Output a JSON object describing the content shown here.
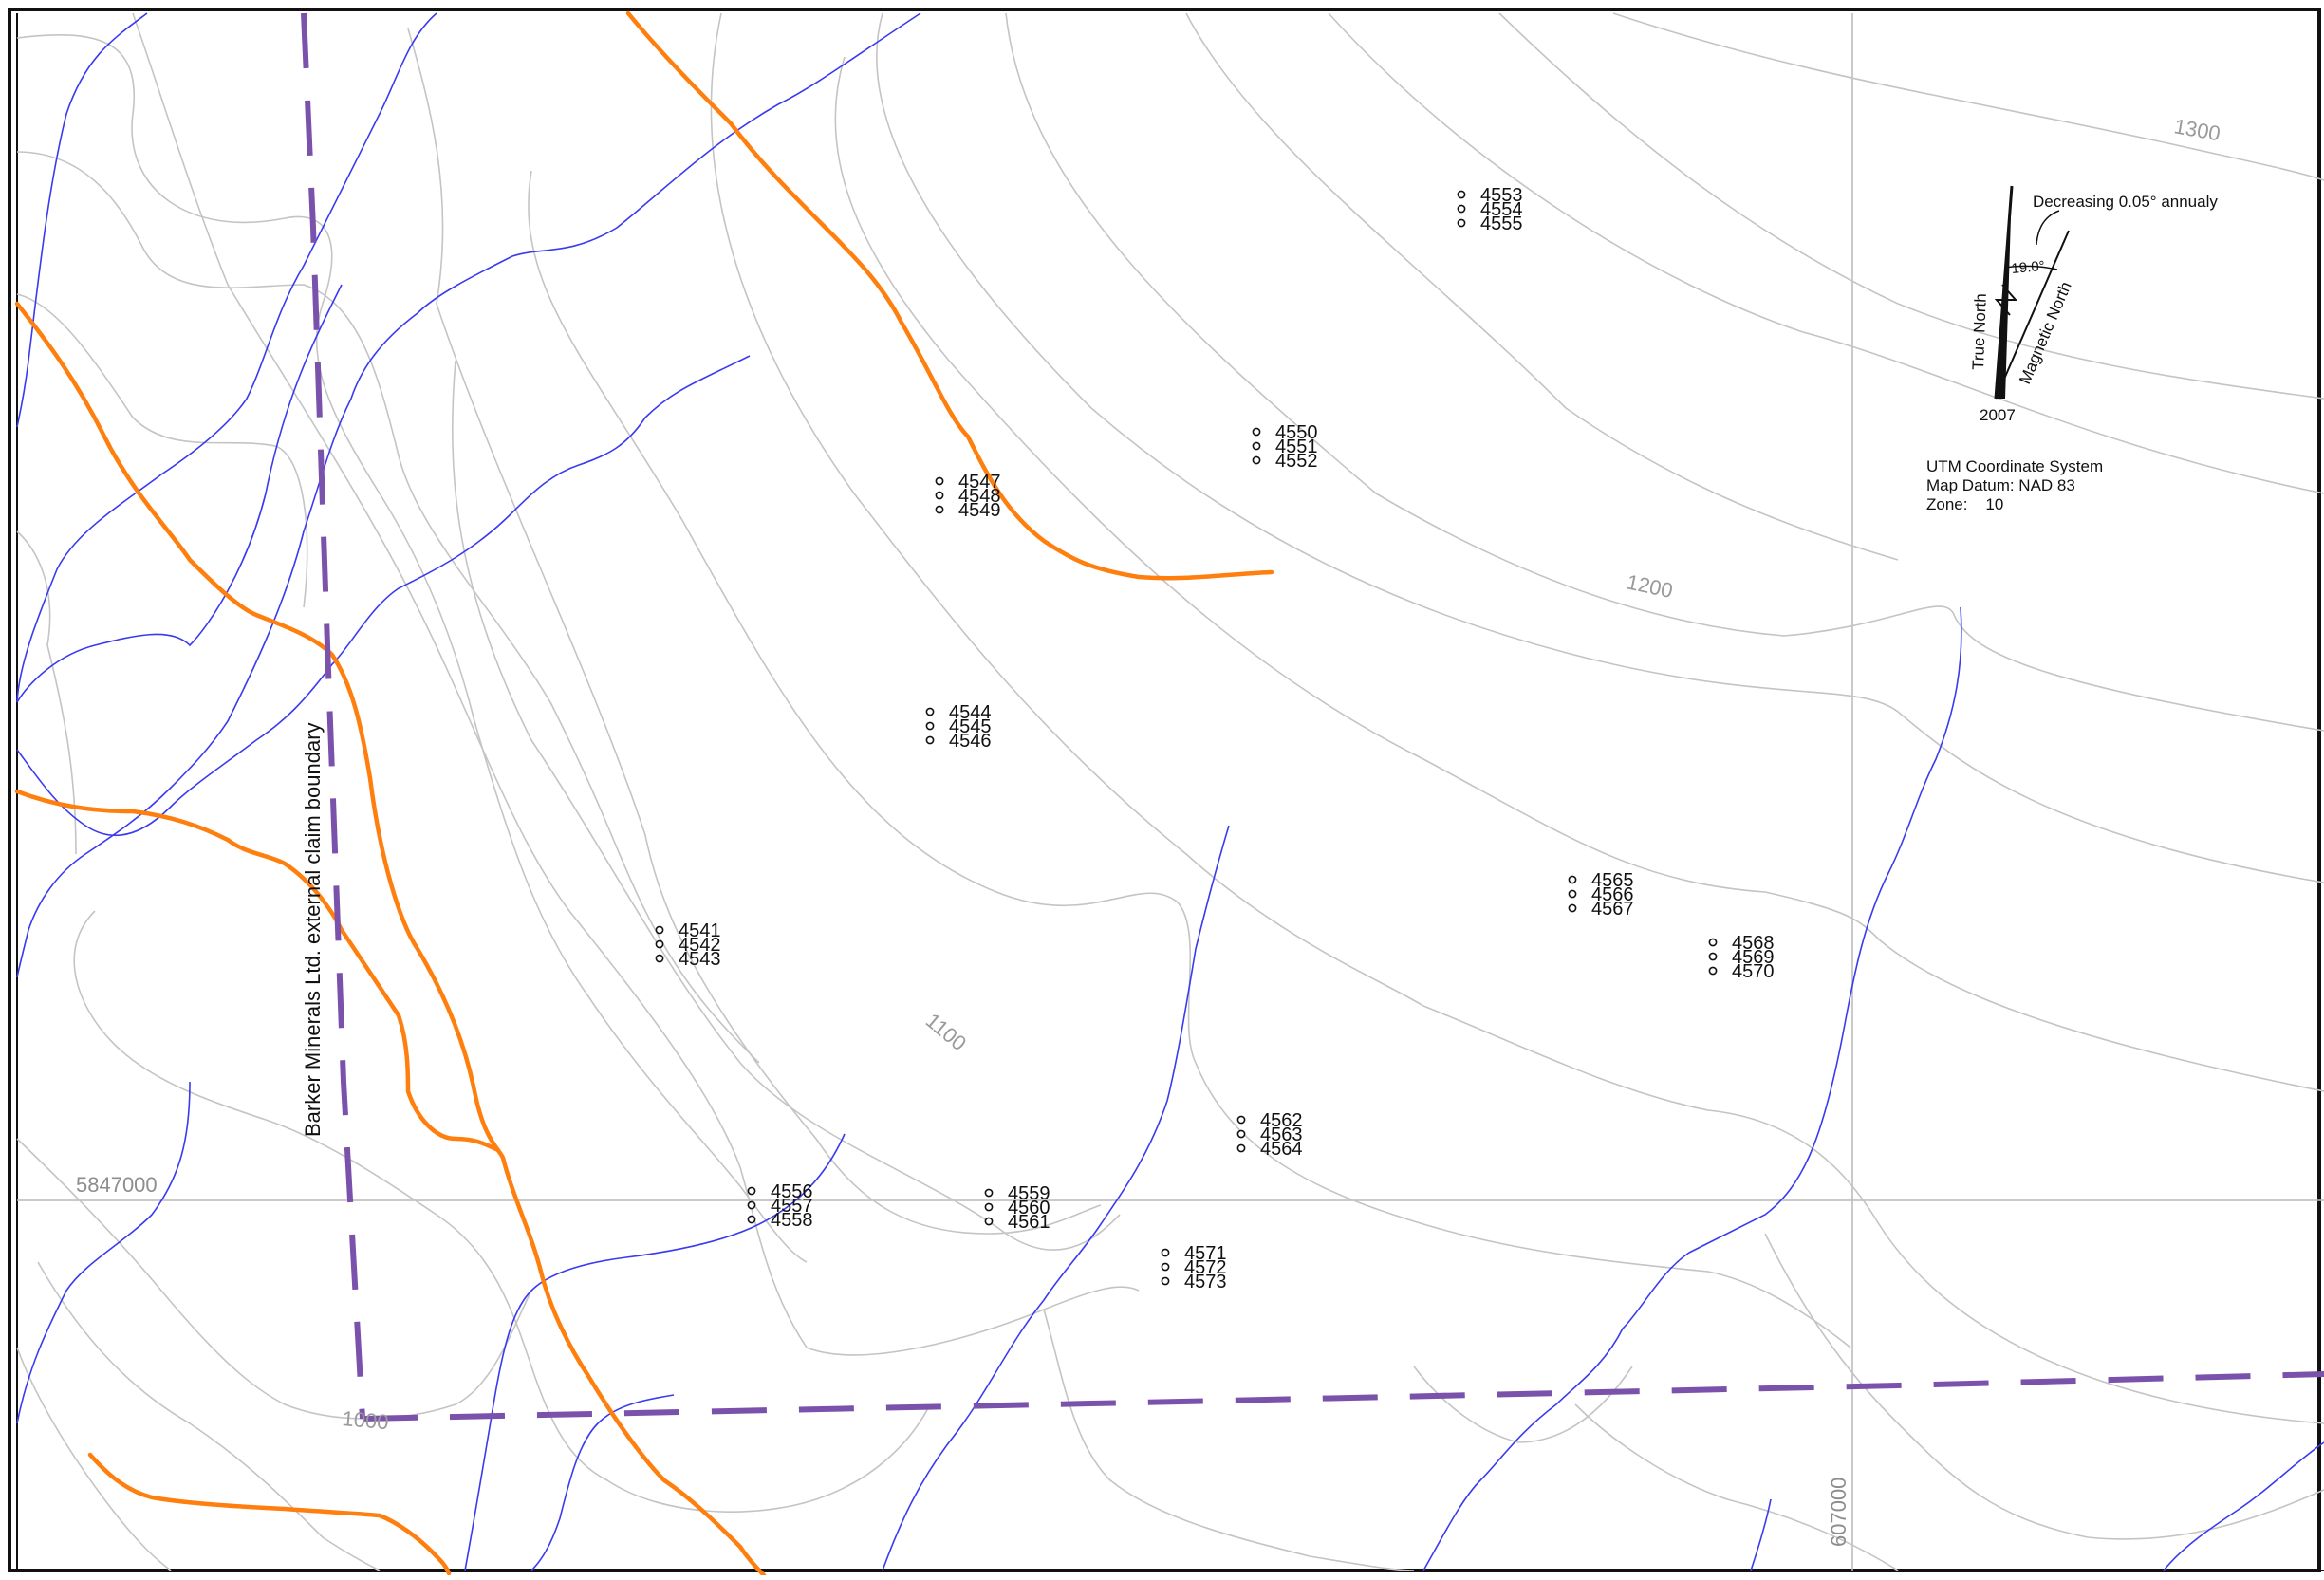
{
  "map": {
    "boundary_label": "Barker Minerals Ltd. external claim boundary",
    "contour_labels": [
      "1300",
      "1200",
      "1100",
      "1000"
    ],
    "grid_labels": {
      "northing": "5847000",
      "easting": "607000"
    },
    "north_arrow": {
      "true_north": "True North",
      "magnetic_north": "Magnetic North",
      "declination": "19.0°",
      "change": "Decreasing 0.05° annualy",
      "year": "2007"
    },
    "coordinate_info": {
      "line1": "UTM Coordinate System",
      "line2": "Map Datum: NAD 83",
      "line3": "Zone:    10"
    },
    "sample_groups": [
      {
        "ids": [
          "4553",
          "4554",
          "4555"
        ]
      },
      {
        "ids": [
          "4550",
          "4551",
          "4552"
        ]
      },
      {
        "ids": [
          "4547",
          "4548",
          "4549"
        ]
      },
      {
        "ids": [
          "4544",
          "4545",
          "4546"
        ]
      },
      {
        "ids": [
          "4541",
          "4542",
          "4543"
        ]
      },
      {
        "ids": [
          "4565",
          "4566",
          "4567"
        ]
      },
      {
        "ids": [
          "4568",
          "4569",
          "4570"
        ]
      },
      {
        "ids": [
          "4562",
          "4563",
          "4564"
        ]
      },
      {
        "ids": [
          "4556",
          "4557",
          "4558"
        ]
      },
      {
        "ids": [
          "4559",
          "4560",
          "4561"
        ]
      },
      {
        "ids": [
          "4571",
          "4572",
          "4573"
        ]
      }
    ],
    "colors": {
      "road": "#ff7f0e",
      "stream": "#3a3af0",
      "contour": "#c4c4c4",
      "boundary": "#7b52ab",
      "grid": "#b8b8b8"
    }
  }
}
